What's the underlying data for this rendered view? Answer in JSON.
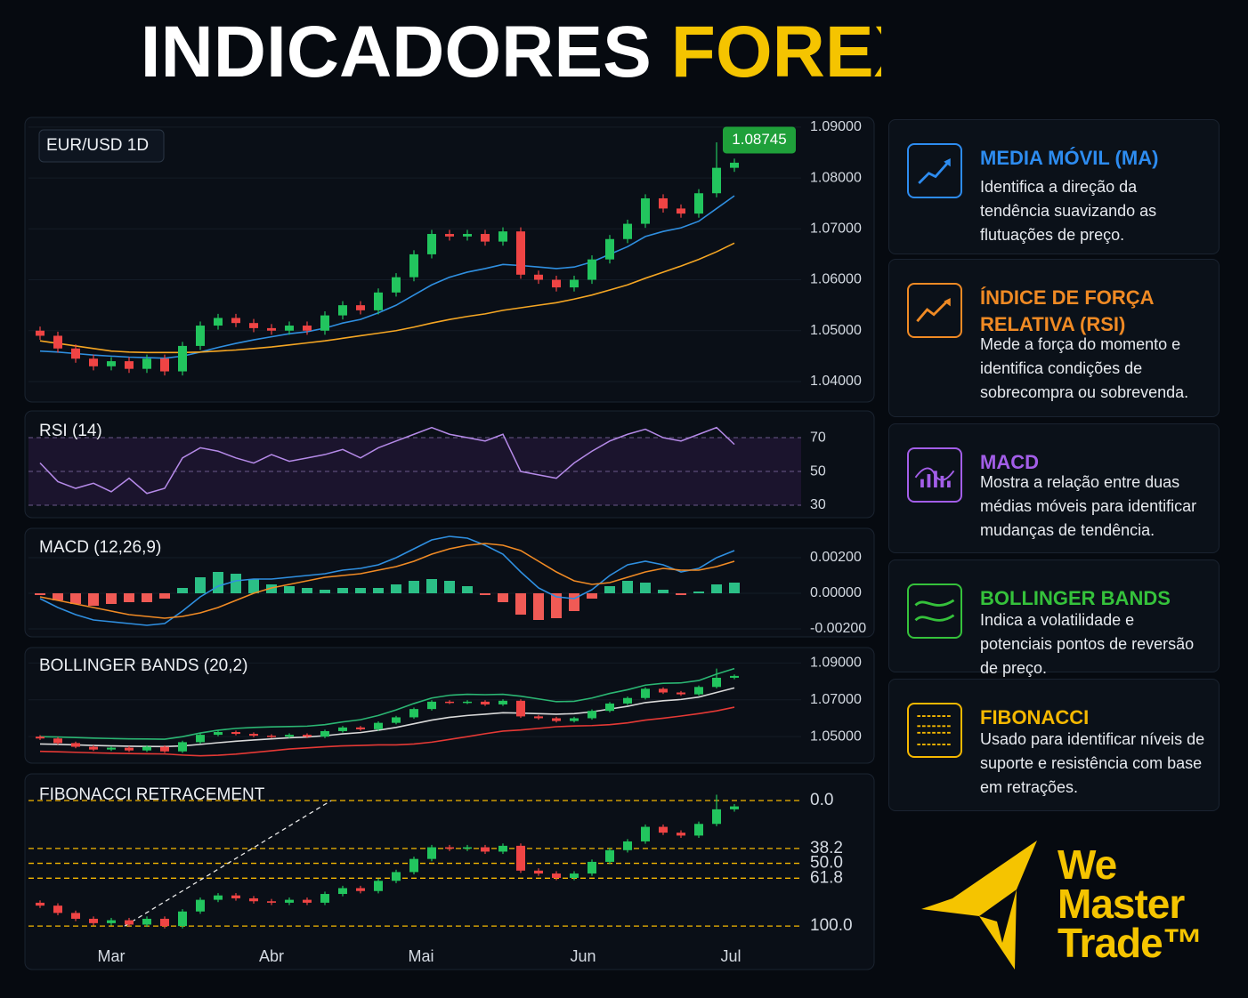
{
  "title": {
    "main": "INDICADORES",
    "accent": "FOREX"
  },
  "chart_data": [
    {
      "type": "candlestick",
      "title": "EUR/USD 1D",
      "up_color": "#22c55e",
      "down_color": "#ef4444",
      "open": [
        1.05,
        1.049,
        1.0465,
        1.0445,
        1.043,
        1.044,
        1.0425,
        1.0445,
        1.042,
        1.047,
        1.051,
        1.0525,
        1.0515,
        1.0505,
        1.05,
        1.051,
        1.05,
        1.053,
        1.055,
        1.054,
        1.0575,
        1.0605,
        1.065,
        1.069,
        1.0685,
        1.069,
        1.0675,
        1.0695,
        1.061,
        1.06,
        1.0585,
        1.06,
        1.064,
        1.068,
        1.071,
        1.076,
        1.074,
        1.073,
        1.077,
        1.082
      ],
      "high": [
        1.0508,
        1.0498,
        1.0473,
        1.0453,
        1.0448,
        1.0448,
        1.0453,
        1.0453,
        1.0478,
        1.0518,
        1.0533,
        1.0533,
        1.0523,
        1.0513,
        1.0518,
        1.0518,
        1.0538,
        1.0558,
        1.0558,
        1.0583,
        1.0613,
        1.0658,
        1.0698,
        1.0698,
        1.0698,
        1.0698,
        1.0703,
        1.0703,
        1.0618,
        1.0608,
        1.0608,
        1.0648,
        1.0688,
        1.0718,
        1.0768,
        1.0768,
        1.0748,
        1.0778,
        1.087,
        1.0838
      ],
      "low": [
        1.0482,
        1.0457,
        1.0437,
        1.0422,
        1.0422,
        1.0417,
        1.0417,
        1.0412,
        1.0412,
        1.0462,
        1.0502,
        1.0507,
        1.0497,
        1.0492,
        1.0492,
        1.0492,
        1.0492,
        1.0522,
        1.0532,
        1.0532,
        1.0567,
        1.0597,
        1.0642,
        1.0677,
        1.0677,
        1.0667,
        1.0667,
        1.0602,
        1.0592,
        1.0577,
        1.0577,
        1.0592,
        1.0632,
        1.0672,
        1.0702,
        1.0732,
        1.0722,
        1.0722,
        1.0762,
        1.0812
      ],
      "close": [
        1.049,
        1.0465,
        1.0445,
        1.043,
        1.044,
        1.0425,
        1.0445,
        1.042,
        1.047,
        1.051,
        1.0525,
        1.0515,
        1.0505,
        1.05,
        1.051,
        1.05,
        1.053,
        1.055,
        1.054,
        1.0575,
        1.0605,
        1.065,
        1.069,
        1.0685,
        1.069,
        1.0675,
        1.0695,
        1.061,
        1.06,
        1.0585,
        1.06,
        1.064,
        1.068,
        1.071,
        1.076,
        1.074,
        1.073,
        1.077,
        1.082,
        1.083
      ],
      "lines": [
        {
          "color": "#2f8fe0",
          "values": [
            1.046,
            1.0458,
            1.0455,
            1.0452,
            1.045,
            1.0448,
            1.0447,
            1.0446,
            1.045,
            1.0458,
            1.0467,
            1.0475,
            1.0482,
            1.0488,
            1.0494,
            1.0498,
            1.0505,
            1.0515,
            1.0522,
            1.0535,
            1.055,
            1.057,
            1.059,
            1.0605,
            1.0615,
            1.0622,
            1.063,
            1.0628,
            1.0625,
            1.0622,
            1.0625,
            1.0635,
            1.065,
            1.0665,
            1.0685,
            1.0695,
            1.0702,
            1.0715,
            1.074,
            1.0765
          ]
        },
        {
          "color": "#f5a623",
          "values": [
            1.048,
            1.0475,
            1.047,
            1.0465,
            1.046,
            1.0458,
            1.0457,
            1.0457,
            1.0457,
            1.0458,
            1.046,
            1.0462,
            1.0465,
            1.0468,
            1.0472,
            1.0476,
            1.048,
            1.0485,
            1.049,
            1.0495,
            1.05,
            1.0507,
            1.0515,
            1.0522,
            1.0528,
            1.0533,
            1.054,
            1.0545,
            1.055,
            1.0555,
            1.0562,
            1.057,
            1.058,
            1.059,
            1.0603,
            1.0615,
            1.0627,
            1.064,
            1.0655,
            1.0672
          ]
        }
      ],
      "last_price": 1.08745,
      "last_price_color": "#1fa03a",
      "ylim": [
        1.0372,
        1.0905
      ],
      "yticks": [
        {
          "value": 1.04,
          "label": "1.04000"
        },
        {
          "value": 1.05,
          "label": "1.05000"
        },
        {
          "value": 1.06,
          "label": "1.06000"
        },
        {
          "value": 1.07,
          "label": "1.07000"
        },
        {
          "value": 1.08,
          "label": "1.08000"
        },
        {
          "value": 1.09,
          "label": "1.09000"
        }
      ]
    },
    {
      "type": "line",
      "title": "RSI (14)",
      "color": "#b58ae8",
      "values": [
        55,
        44,
        40,
        43,
        38,
        46,
        37,
        40,
        58,
        64,
        62,
        58,
        55,
        60,
        56,
        58,
        60,
        63,
        58,
        64,
        68,
        72,
        76,
        72,
        70,
        68,
        72,
        50,
        48,
        46,
        55,
        62,
        68,
        72,
        75,
        70,
        68,
        72,
        76,
        66
      ],
      "ylim": [
        23.7,
        81.6
      ],
      "yticks": [
        30,
        50,
        70
      ]
    },
    {
      "type": "macd",
      "title": "MACD (12,26,9)",
      "series": [
        {
          "color": "#2f8fe0",
          "values": [
            -0.0003,
            -0.0008,
            -0.0012,
            -0.0015,
            -0.0016,
            -0.0017,
            -0.0018,
            -0.0017,
            -0.001,
            -0.0002,
            0.0004,
            0.0007,
            0.0008,
            0.0008,
            0.0009,
            0.001,
            0.0011,
            0.0013,
            0.0014,
            0.0016,
            0.002,
            0.0025,
            0.003,
            0.0032,
            0.0031,
            0.0027,
            0.0022,
            0.0012,
            0.0003,
            -0.0002,
            -0.0003,
            0.0002,
            0.001,
            0.0016,
            0.0018,
            0.0016,
            0.0012,
            0.0014,
            0.002,
            0.0024
          ]
        },
        {
          "color": "#f08a24",
          "values": [
            -0.0002,
            -0.0004,
            -0.0006,
            -0.0008,
            -0.001,
            -0.0012,
            -0.0013,
            -0.0014,
            -0.0013,
            -0.0011,
            -0.0008,
            -0.0004,
            0.0,
            0.0003,
            0.0005,
            0.0007,
            0.0009,
            0.001,
            0.0011,
            0.0013,
            0.0015,
            0.0018,
            0.0022,
            0.0025,
            0.0027,
            0.0028,
            0.0027,
            0.0024,
            0.0018,
            0.0012,
            0.0007,
            0.0005,
            0.0006,
            0.0009,
            0.0012,
            0.0014,
            0.0013,
            0.0013,
            0.0015,
            0.0018
          ]
        }
      ],
      "histogram": [
        -0.0001,
        -0.0004,
        -0.0006,
        -0.0007,
        -0.0006,
        -0.0005,
        -0.0005,
        -0.0003,
        0.0003,
        0.0009,
        0.0012,
        0.0011,
        0.0008,
        0.0005,
        0.0004,
        0.0003,
        0.0002,
        0.0003,
        0.0003,
        0.0003,
        0.0005,
        0.0007,
        0.0008,
        0.0007,
        0.0004,
        -0.0001,
        -0.0005,
        -0.0012,
        -0.0015,
        -0.0014,
        -0.001,
        -0.0003,
        0.0004,
        0.0007,
        0.0006,
        0.0002,
        -0.0001,
        0.0001,
        0.0005,
        0.0006
      ],
      "hist_up_color": "#2bbf86",
      "hist_down_color": "#f05a55",
      "ylim": [
        -0.00225,
        0.00335
      ],
      "yticks": [
        {
          "value": -0.002,
          "label": "-0.00200"
        },
        {
          "value": 0,
          "label": "0.00000"
        },
        {
          "value": 0.002,
          "label": "0.00200"
        }
      ]
    },
    {
      "type": "bollinger",
      "title": "BOLLINGER BANDS (20,2)",
      "series": [
        {
          "color": "#2bb673",
          "values": [
            1.05,
            1.0498,
            1.0495,
            1.0492,
            1.049,
            1.0488,
            1.0487,
            1.0486,
            1.05,
            1.052,
            1.0535,
            1.0545,
            1.055,
            1.0553,
            1.0555,
            1.0557,
            1.0565,
            1.058,
            1.0592,
            1.0615,
            1.0645,
            1.068,
            1.071,
            1.0725,
            1.073,
            1.0728,
            1.073,
            1.072,
            1.0705,
            1.069,
            1.0692,
            1.071,
            1.0735,
            1.0755,
            1.078,
            1.079,
            1.0792,
            1.0805,
            1.084,
            1.087
          ]
        },
        {
          "color": "#d9d9d9",
          "values": [
            1.046,
            1.0458,
            1.0455,
            1.0452,
            1.045,
            1.0448,
            1.0447,
            1.0446,
            1.045,
            1.0458,
            1.0467,
            1.0475,
            1.0482,
            1.0488,
            1.0494,
            1.0498,
            1.0505,
            1.0515,
            1.0522,
            1.0535,
            1.055,
            1.057,
            1.059,
            1.0605,
            1.0615,
            1.0622,
            1.063,
            1.0628,
            1.0625,
            1.0622,
            1.0625,
            1.0635,
            1.065,
            1.0665,
            1.0685,
            1.0695,
            1.0702,
            1.0715,
            1.074,
            1.0765
          ]
        },
        {
          "color": "#e53935",
          "values": [
            1.042,
            1.0418,
            1.0415,
            1.0412,
            1.041,
            1.0408,
            1.0407,
            1.0406,
            1.04,
            1.0396,
            1.0399,
            1.0405,
            1.0414,
            1.0423,
            1.0433,
            1.0439,
            1.0445,
            1.045,
            1.0452,
            1.0455,
            1.0455,
            1.046,
            1.047,
            1.0485,
            1.05,
            1.0516,
            1.053,
            1.0536,
            1.0545,
            1.0554,
            1.0558,
            1.056,
            1.0565,
            1.0575,
            1.059,
            1.06,
            1.0612,
            1.0625,
            1.064,
            1.066
          ]
        }
      ],
      "ylim": [
        1.038,
        1.096
      ],
      "yticks": [
        {
          "value": 1.05,
          "label": "1.05000"
        },
        {
          "value": 1.07,
          "label": "1.07000"
        },
        {
          "value": 1.09,
          "label": "1.09000"
        }
      ]
    },
    {
      "type": "fibonacci",
      "title": "FIBONACCI RETRACEMENT",
      "color": "#f5b800",
      "ylim": [
        1.0393,
        1.0911
      ],
      "yticks": [
        {
          "value": 1.085,
          "label": "0.0"
        },
        {
          "value": 1.0686,
          "label": "38.2"
        },
        {
          "value": 1.0635,
          "label": "50.0"
        },
        {
          "value": 1.0584,
          "label": "61.8"
        },
        {
          "value": 1.042,
          "label": "100.0"
        }
      ],
      "xticks": [
        {
          "value": 4,
          "label": "Mar"
        },
        {
          "value": 13,
          "label": "Abr"
        },
        {
          "value": 21.4,
          "label": "Mai"
        },
        {
          "value": 30.5,
          "label": "Jun"
        },
        {
          "value": 38.8,
          "label": "Jul"
        }
      ]
    }
  ],
  "cards": [
    {
      "title": "MEDIA MÓVIL (MA)",
      "text": "Identifica a direção da tendência suavizando as flutuações de preço.",
      "color": "#2d8cf0"
    },
    {
      "title": "ÍNDICE DE FORÇA RELATIVA (RSI)",
      "text": "Mede a força do momento e identifica condições de sobrecompra ou sobrevenda.",
      "color": "#f08a24"
    },
    {
      "title": "MACD",
      "text": "Mostra a relação entre duas médias móveis para identificar mudanças de tendência.",
      "color": "#a35ee8"
    },
    {
      "title": "BOLLINGER BANDS",
      "text": "Indica a volatilidade e potenciais pontos de reversão de preço.",
      "color": "#35c23b"
    },
    {
      "title": "FIBONACCI",
      "text": "Usado para identificar níveis de suporte e resistência com base em retrações.",
      "color": "#f5b800"
    }
  ],
  "logo": {
    "lines": [
      "We",
      "Master",
      "Trade™"
    ],
    "color": "#f5c400"
  }
}
